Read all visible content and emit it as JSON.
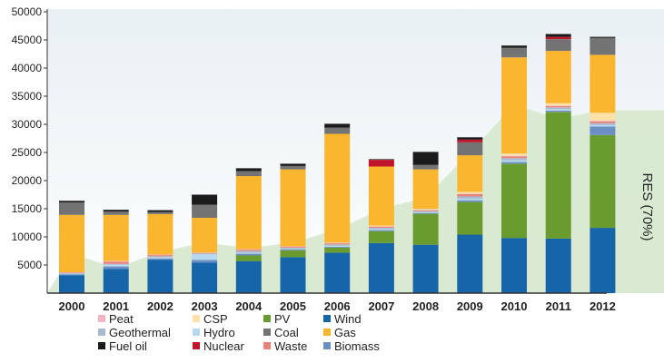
{
  "chart_data": {
    "type": "bar",
    "stacked": true,
    "categories": [
      "2000",
      "2001",
      "2002",
      "2003",
      "2004",
      "2005",
      "2006",
      "2007",
      "2008",
      "2009",
      "2010",
      "2011",
      "2012"
    ],
    "ylim": [
      0,
      50000
    ],
    "yticks": [
      "5000",
      "10000",
      "15000",
      "20000",
      "25000",
      "30000",
      "35000",
      "40000",
      "45000",
      "50000"
    ],
    "grid": false,
    "legend_position": "bottom",
    "series": [
      {
        "name": "Wind",
        "color": "#1565a8",
        "values": [
          3200,
          4300,
          5900,
          5400,
          5700,
          6400,
          7200,
          8900,
          8600,
          10400,
          9800,
          9700,
          11600
        ]
      },
      {
        "name": "PV",
        "color": "#6a9b2e",
        "values": [
          0,
          0,
          0,
          0,
          1000,
          1200,
          900,
          2100,
          5500,
          5800,
          13200,
          22500,
          16500
        ]
      },
      {
        "name": "Biomass",
        "color": "#6b8fc4",
        "values": [
          150,
          450,
          250,
          500,
          300,
          200,
          150,
          200,
          150,
          300,
          300,
          250,
          1500
        ]
      },
      {
        "name": "Hydro",
        "color": "#b7d9ef",
        "values": [
          100,
          300,
          200,
          1000,
          200,
          150,
          200,
          200,
          150,
          300,
          300,
          250,
          300
        ]
      },
      {
        "name": "Geothermal",
        "color": "#aab8d0",
        "values": [
          100,
          150,
          200,
          150,
          300,
          150,
          200,
          200,
          150,
          400,
          400,
          300,
          300
        ]
      },
      {
        "name": "Waste",
        "color": "#e8837c",
        "values": [
          100,
          400,
          200,
          100,
          200,
          150,
          200,
          200,
          200,
          400,
          300,
          250,
          300
        ]
      },
      {
        "name": "Peat",
        "color": "#f2b4c2",
        "values": [
          50,
          100,
          100,
          50,
          100,
          50,
          100,
          50,
          50,
          100,
          100,
          100,
          150
        ]
      },
      {
        "name": "CSP",
        "color": "#fde1a8",
        "values": [
          0,
          0,
          0,
          0,
          0,
          0,
          50,
          150,
          200,
          300,
          400,
          400,
          1400
        ]
      },
      {
        "name": "Gas",
        "color": "#fbb630",
        "values": [
          10200,
          8200,
          7200,
          6200,
          13000,
          13700,
          19300,
          10500,
          7000,
          6500,
          17100,
          9300,
          10300
        ]
      },
      {
        "name": "Coal",
        "color": "#737373",
        "values": [
          2200,
          600,
          400,
          2300,
          900,
          600,
          1100,
          0,
          800,
          2300,
          1700,
          2100,
          3000
        ]
      },
      {
        "name": "Nuclear",
        "color": "#c0152a",
        "values": [
          0,
          0,
          0,
          0,
          0,
          0,
          0,
          1200,
          0,
          500,
          0,
          400,
          0
        ]
      },
      {
        "name": "Fuel oil",
        "color": "#1b1b1b",
        "values": [
          300,
          300,
          300,
          1800,
          500,
          400,
          700,
          100,
          2300,
          400,
          400,
          500,
          200
        ]
      }
    ],
    "res_area": {
      "label": "RES (70%)",
      "values": [
        0,
        7000,
        4500,
        7300,
        9000,
        8000,
        9000,
        11300,
        15000,
        17000,
        25000,
        33500,
        31000,
        32500
      ]
    }
  },
  "legend": {
    "columns": [
      [
        "Peat",
        "Geothermal",
        "Fuel oil"
      ],
      [
        "CSP",
        "Hydro",
        "Nuclear"
      ],
      [
        "PV",
        "Coal",
        "Waste"
      ],
      [
        "Wind",
        "Gas",
        "Biomass"
      ]
    ]
  }
}
